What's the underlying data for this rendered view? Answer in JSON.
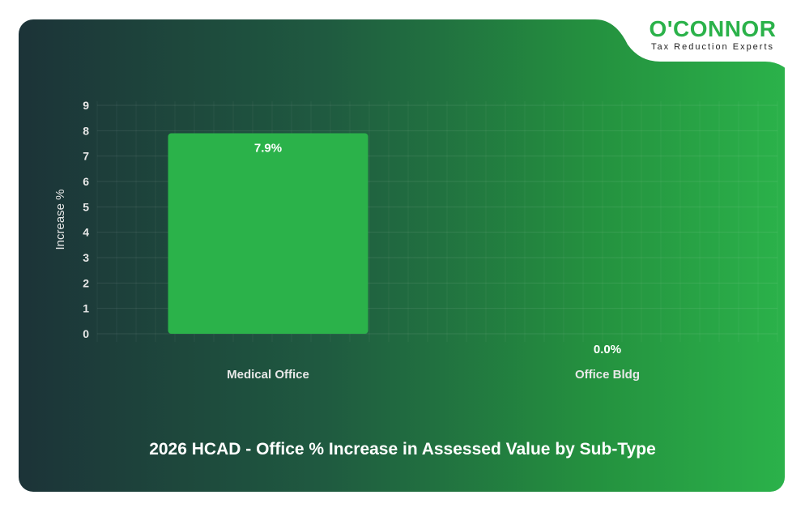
{
  "logo": {
    "name": "O'CONNOR",
    "tagline": "Tax Reduction Experts"
  },
  "chart_data": {
    "type": "bar",
    "title": "2026 HCAD - Office % Increase in Assessed Value by Sub-Type",
    "xlabel": "",
    "ylabel": "Increase %",
    "categories": [
      "Medical Office",
      "Office Bldg"
    ],
    "values": [
      7.9,
      0.0
    ],
    "data_labels": [
      "7.9%",
      "0.0%"
    ],
    "ylim": [
      0,
      9
    ],
    "yticks": [
      "0",
      "1",
      "2",
      "3",
      "4",
      "5",
      "6",
      "7",
      "8",
      "9"
    ],
    "grid": true,
    "bar_color": "#2bb24a"
  }
}
